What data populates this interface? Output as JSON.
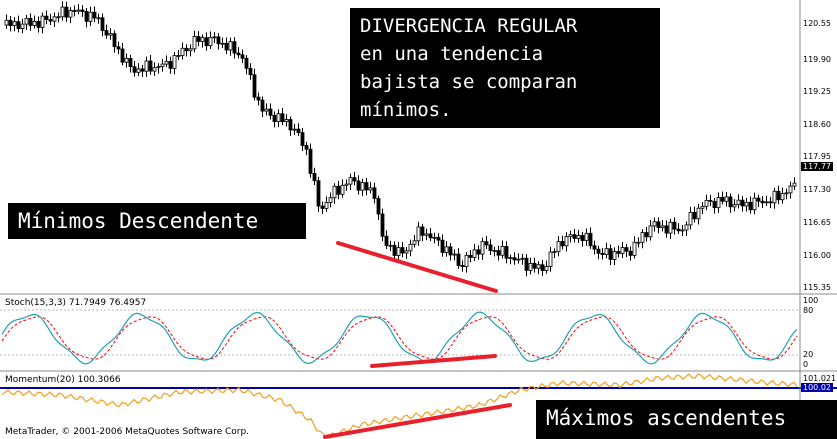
{
  "annotations": {
    "main": "DIVERGENCIA REGULAR\nen una tendencia\nbajista se comparan\nmínimos.",
    "price_lows": "Mínimos Descendente",
    "momentum_highs": "Máximos ascendentes"
  },
  "price_axis": {
    "ticks": [
      "120.55",
      "119.90",
      "119.25",
      "118.60",
      "117.95",
      "117.30",
      "116.65",
      "116.00",
      "115.35"
    ],
    "current_price": "117.77"
  },
  "stochastic": {
    "label": "Stoch(15,3,3) 71.7949 76.4957",
    "levels": [
      "100",
      "80",
      "20",
      "0"
    ]
  },
  "momentum": {
    "label": "Momentum(20) 100.3066",
    "ticks": [
      "101.021"
    ],
    "current_value": "100.02"
  },
  "footer": "MetaTrader, © 2001-2006 MetaQuotes Software Corp.",
  "colors": {
    "bull": "#ffffff",
    "bear": "#000000",
    "stoch_main": "#1ea3b5",
    "stoch_signal": "#ff0000",
    "momentum": "#f0a020",
    "level_line": "#0000aa",
    "divergence": "#e8202c"
  }
}
